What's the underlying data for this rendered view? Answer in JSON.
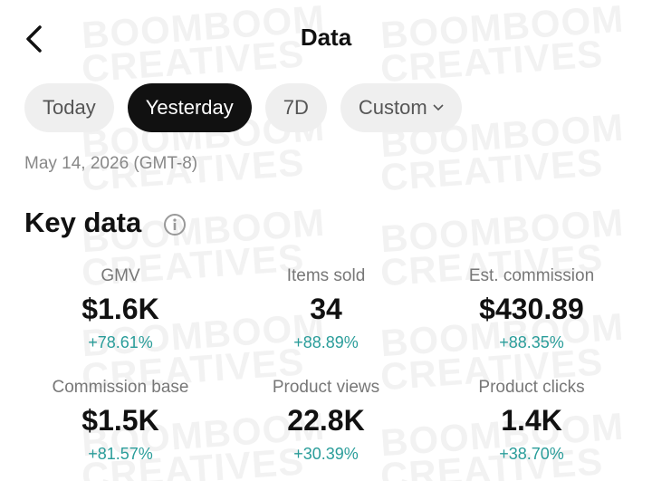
{
  "watermark": [
    "BOOMBOOM",
    "CREATIVES"
  ],
  "header": {
    "title": "Data"
  },
  "tabs": [
    {
      "label": "Today",
      "selected": false
    },
    {
      "label": "Yesterday",
      "selected": true
    },
    {
      "label": "7D",
      "selected": false
    },
    {
      "label": "Custom",
      "selected": false
    }
  ],
  "date": "May 14, 2026 (GMT-8)",
  "section": {
    "title": "Key data"
  },
  "metrics": [
    {
      "label": "GMV",
      "value": "$1.6K",
      "change": "+78.61%"
    },
    {
      "label": "Items sold",
      "value": "34",
      "change": "+88.89%"
    },
    {
      "label": "Est. commission",
      "value": "$430.89",
      "change": "+88.35%"
    },
    {
      "label": "Commission base",
      "value": "$1.5K",
      "change": "+81.57%"
    },
    {
      "label": "Product views",
      "value": "22.8K",
      "change": "+30.39%"
    },
    {
      "label": "Product clicks",
      "value": "1.4K",
      "change": "+38.70%"
    }
  ]
}
